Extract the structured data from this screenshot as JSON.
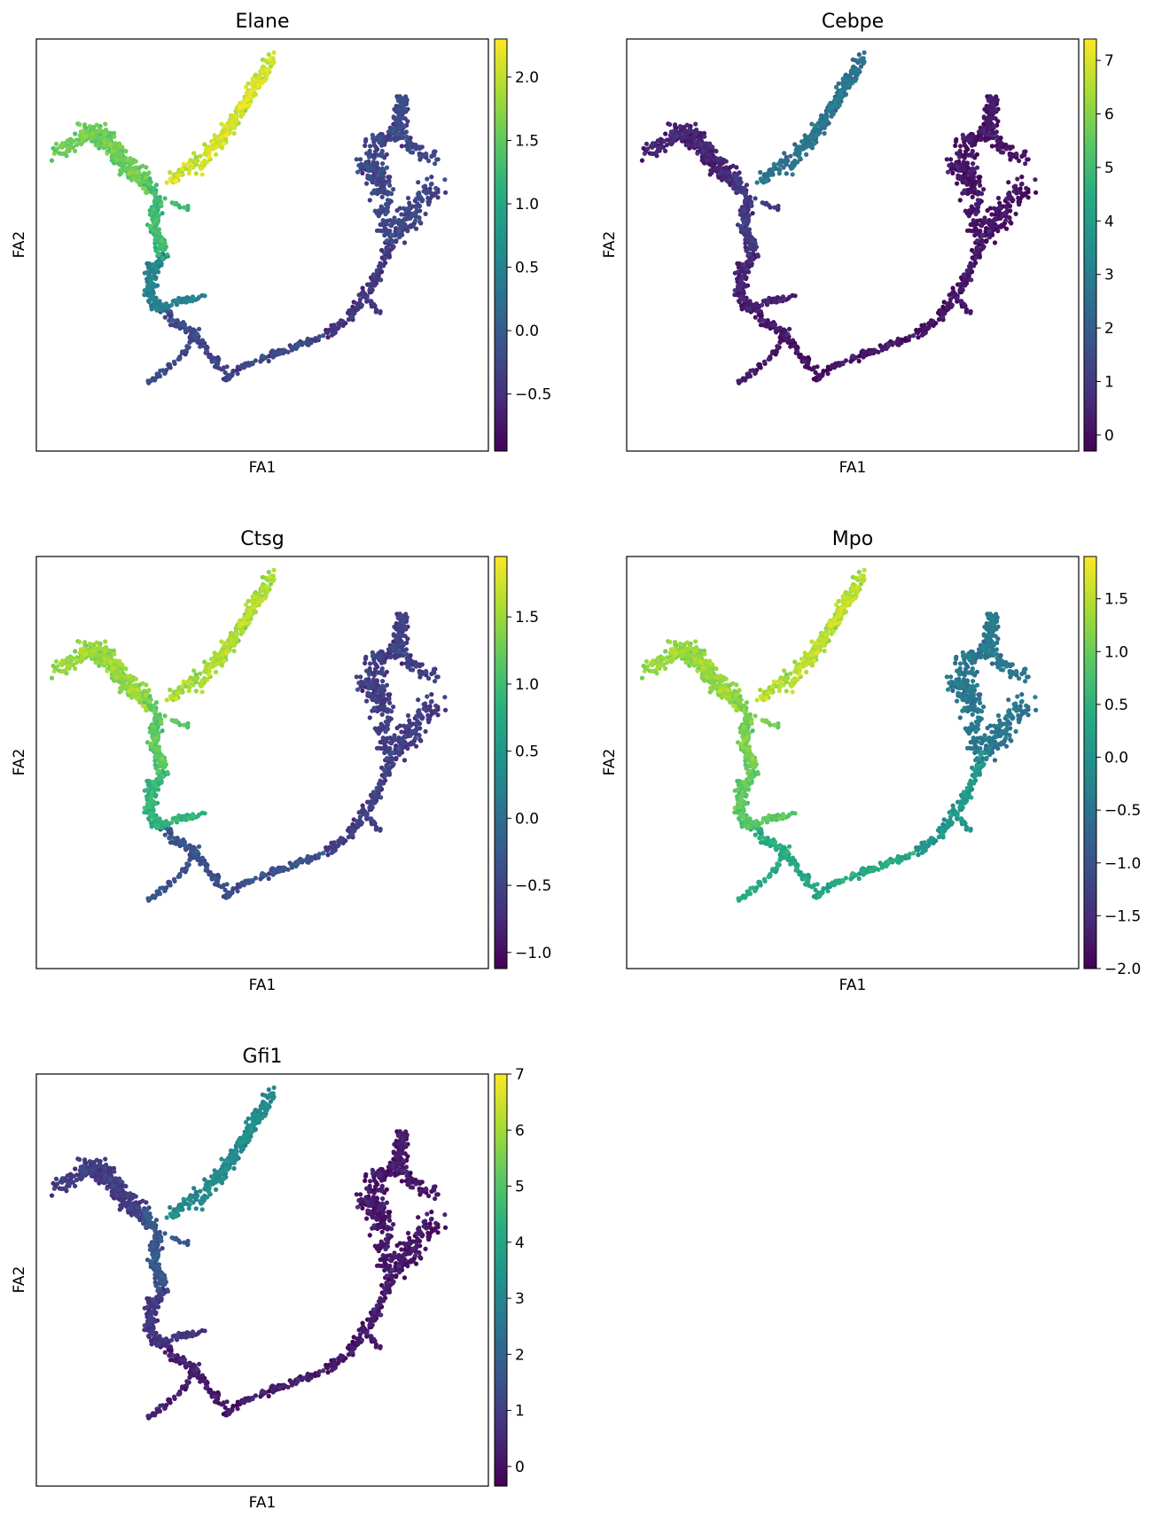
{
  "figure": {
    "colormap": "viridis",
    "viridis_stops": [
      "#440154",
      "#472c7a",
      "#3b518b",
      "#2c718e",
      "#21908d",
      "#27ad81",
      "#5cc863",
      "#aadc32",
      "#fde725"
    ],
    "axis_frame_color": "#000000"
  },
  "chart_data": [
    {
      "type": "scatter",
      "title": "Elane",
      "xlabel": "FA1",
      "ylabel": "FA2",
      "colorbar": {
        "min": -0.95,
        "max": 2.3,
        "ticks": [
          -0.5,
          0.0,
          0.5,
          1.0,
          1.5,
          2.0
        ],
        "tick_labels": [
          "−0.5",
          "0.0",
          "0.5",
          "1.0",
          "1.5",
          "2.0"
        ]
      },
      "branch_values": {
        "neutro_arm": 2.0,
        "left_cluster": 1.5,
        "junction": 1.2,
        "lower_left": 0.4,
        "bottom": -0.3,
        "right_arm": -0.5,
        "right_cluster": -0.3
      }
    },
    {
      "type": "scatter",
      "title": "Cebpe",
      "xlabel": "FA1",
      "ylabel": "FA2",
      "colorbar": {
        "min": -0.3,
        "max": 7.4,
        "ticks": [
          0,
          1,
          2,
          3,
          4,
          5,
          6,
          7
        ],
        "tick_labels": [
          "0",
          "1",
          "2",
          "3",
          "4",
          "5",
          "6",
          "7"
        ]
      },
      "branch_values": {
        "neutro_arm": 2.5,
        "left_cluster": 0.3,
        "junction": 0.8,
        "lower_left": 0.2,
        "bottom": 0.0,
        "right_arm": 0.0,
        "right_cluster": 0.0
      }
    },
    {
      "type": "scatter",
      "title": "Ctsg",
      "xlabel": "FA1",
      "ylabel": "FA2",
      "colorbar": {
        "min": -1.12,
        "max": 1.95,
        "ticks": [
          -1.0,
          -0.5,
          0.0,
          0.5,
          1.0,
          1.5
        ],
        "tick_labels": [
          "−1.0",
          "−0.5",
          "0.0",
          "0.5",
          "1.0",
          "1.5"
        ]
      },
      "branch_values": {
        "neutro_arm": 1.5,
        "left_cluster": 1.4,
        "junction": 1.1,
        "lower_left": 0.8,
        "bottom": -0.4,
        "right_arm": -0.6,
        "right_cluster": -0.6
      }
    },
    {
      "type": "scatter",
      "title": "Mpo",
      "xlabel": "FA1",
      "ylabel": "FA2",
      "colorbar": {
        "min": -2.0,
        "max": 1.9,
        "ticks": [
          -2.0,
          -1.5,
          -1.0,
          -0.5,
          0.0,
          0.5,
          1.0,
          1.5
        ],
        "tick_labels": [
          "−2.0",
          "−1.5",
          "−1.0",
          "−0.5",
          "0.0",
          "0.5",
          "1.0",
          "1.5"
        ]
      },
      "branch_values": {
        "neutro_arm": 1.4,
        "left_cluster": 1.2,
        "junction": 1.0,
        "lower_left": 0.8,
        "bottom": 0.3,
        "right_arm": 0.0,
        "right_cluster": -0.5
      }
    },
    {
      "type": "scatter",
      "title": "Gfi1",
      "xlabel": "FA1",
      "ylabel": "FA2",
      "colorbar": {
        "min": -0.35,
        "max": 7.0,
        "ticks": [
          0,
          1,
          2,
          3,
          4,
          5,
          6,
          7
        ],
        "tick_labels": [
          "0",
          "1",
          "2",
          "3",
          "4",
          "5",
          "6",
          "7"
        ]
      },
      "branch_values": {
        "neutro_arm": 3.0,
        "left_cluster": 0.8,
        "junction": 1.5,
        "lower_left": 0.6,
        "bottom": 0.1,
        "right_arm": 0.0,
        "right_cluster": 0.0
      }
    }
  ]
}
